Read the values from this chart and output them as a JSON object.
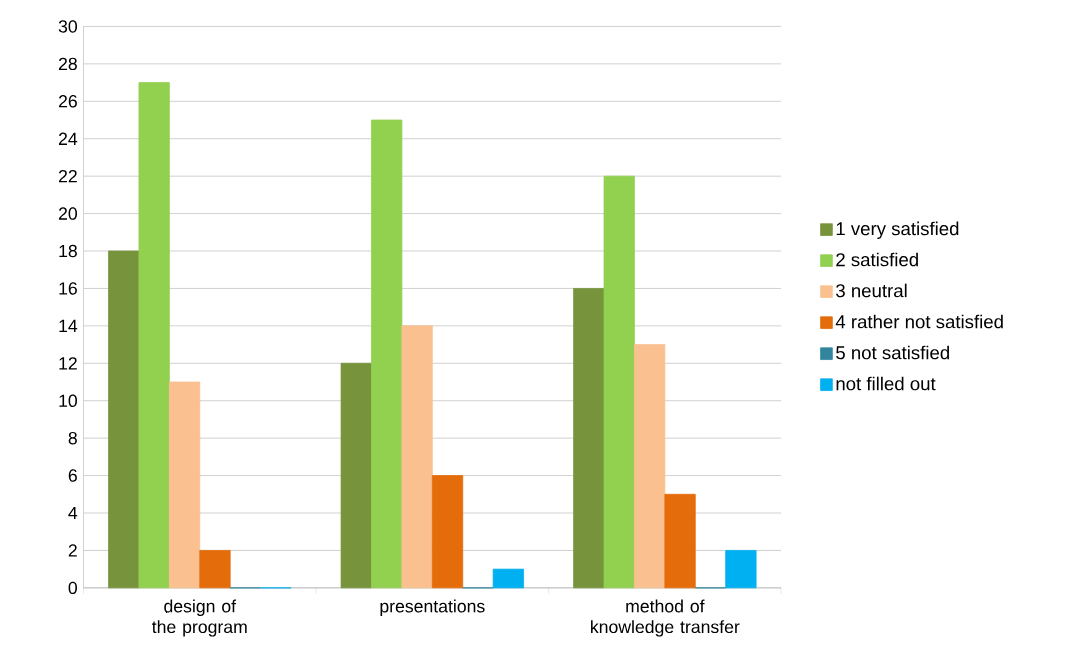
{
  "chart_data": {
    "type": "bar",
    "categories": [
      "design of the program",
      "presentations",
      "method of knowledge transfer"
    ],
    "series": [
      {
        "name": "1 very satisfied",
        "color": "#77933c",
        "values": [
          18,
          12,
          16
        ]
      },
      {
        "name": "2 satisfied",
        "color": "#92d050",
        "values": [
          27,
          25,
          22
        ]
      },
      {
        "name": "3 neutral",
        "color": "#fac090",
        "values": [
          11,
          14,
          13
        ]
      },
      {
        "name": "4 rather not satisfied",
        "color": "#e46c0a",
        "values": [
          2,
          6,
          5
        ]
      },
      {
        "name": "5 not satisfied",
        "color": "#31859c",
        "values": [
          0,
          0,
          0
        ]
      },
      {
        "name": "not filled out",
        "color": "#00b0f0",
        "values": [
          0,
          1,
          2
        ]
      }
    ],
    "ylim": [
      0,
      30
    ],
    "yticks": [
      0,
      2,
      4,
      6,
      8,
      10,
      12,
      14,
      16,
      18,
      20,
      22,
      24,
      26,
      28,
      30
    ],
    "grid": "y",
    "legend": "right"
  }
}
